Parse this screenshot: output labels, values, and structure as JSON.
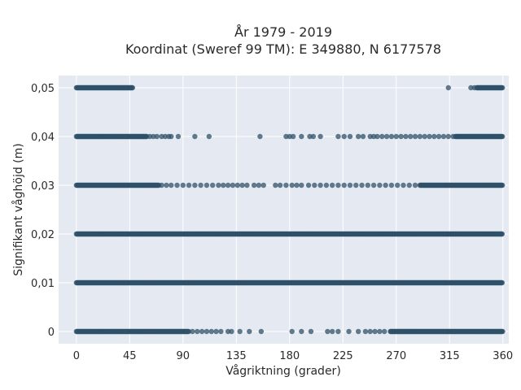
{
  "chart_data": {
    "type": "scatter",
    "title_line1": "År 1979 - 2019",
    "title_line2": "Koordinat (Sweref 99 TM): E 349880, N 6177578",
    "xlabel": "Vågriktning (grader)",
    "ylabel": "Signifikant våghöjd (m)",
    "xlim": [
      -15,
      365
    ],
    "ylim": [
      -0.0025,
      0.0525
    ],
    "grid": true,
    "marker_color": "#2f5068",
    "plot_background": "#e5e9f2",
    "x_ticks": [
      {
        "value": 0,
        "label": "0"
      },
      {
        "value": 45,
        "label": "45"
      },
      {
        "value": 90,
        "label": "90"
      },
      {
        "value": 135,
        "label": "135"
      },
      {
        "value": 180,
        "label": "180"
      },
      {
        "value": 225,
        "label": "225"
      },
      {
        "value": 270,
        "label": "270"
      },
      {
        "value": 315,
        "label": "315"
      },
      {
        "value": 360,
        "label": "360"
      }
    ],
    "y_ticks": [
      {
        "value": 0,
        "label": "0"
      },
      {
        "value": 0.01,
        "label": "0,01"
      },
      {
        "value": 0.02,
        "label": "0,02"
      },
      {
        "value": 0.03,
        "label": "0,03"
      },
      {
        "value": 0.04,
        "label": "0,04"
      },
      {
        "value": 0.05,
        "label": "0,05"
      }
    ],
    "series": [
      {
        "y": 0.05,
        "dense_ranges": [
          [
            0,
            48
          ],
          [
            338,
            360
          ]
        ],
        "points": [
          314,
          333,
          336
        ]
      },
      {
        "y": 0.04,
        "dense_ranges": [
          [
            0,
            60
          ],
          [
            320,
            360
          ]
        ],
        "points": [
          62,
          65,
          68,
          72,
          75,
          78,
          80,
          86,
          100,
          112,
          155,
          177,
          180,
          183,
          190,
          197,
          200,
          206,
          221,
          226,
          231,
          238,
          242,
          248,
          251,
          254,
          258,
          262,
          266,
          270,
          274,
          278,
          282,
          286,
          290,
          294,
          298,
          302,
          306,
          310,
          314,
          318
        ]
      },
      {
        "y": 0.03,
        "dense_ranges": [
          [
            0,
            70
          ],
          [
            290,
            360
          ]
        ],
        "points": [
          72,
          76,
          80,
          85,
          90,
          95,
          100,
          105,
          110,
          115,
          120,
          124,
          128,
          132,
          136,
          140,
          144,
          150,
          154,
          158,
          168,
          172,
          177,
          182,
          186,
          190,
          196,
          201,
          206,
          211,
          216,
          221,
          226,
          231,
          236,
          241,
          246,
          251,
          256,
          261,
          266,
          271,
          276,
          281,
          286
        ]
      },
      {
        "y": 0.02,
        "dense_ranges": [
          [
            0,
            360
          ]
        ],
        "points": []
      },
      {
        "y": 0.01,
        "dense_ranges": [
          [
            0,
            360
          ]
        ],
        "points": []
      },
      {
        "y": 0,
        "dense_ranges": [
          [
            0,
            95
          ],
          [
            265,
            360
          ]
        ],
        "points": [
          98,
          102,
          106,
          110,
          114,
          118,
          122,
          128,
          131,
          138,
          146,
          156,
          182,
          190,
          198,
          212,
          216,
          221,
          230,
          238,
          244,
          248,
          252,
          256,
          260
        ]
      }
    ]
  }
}
